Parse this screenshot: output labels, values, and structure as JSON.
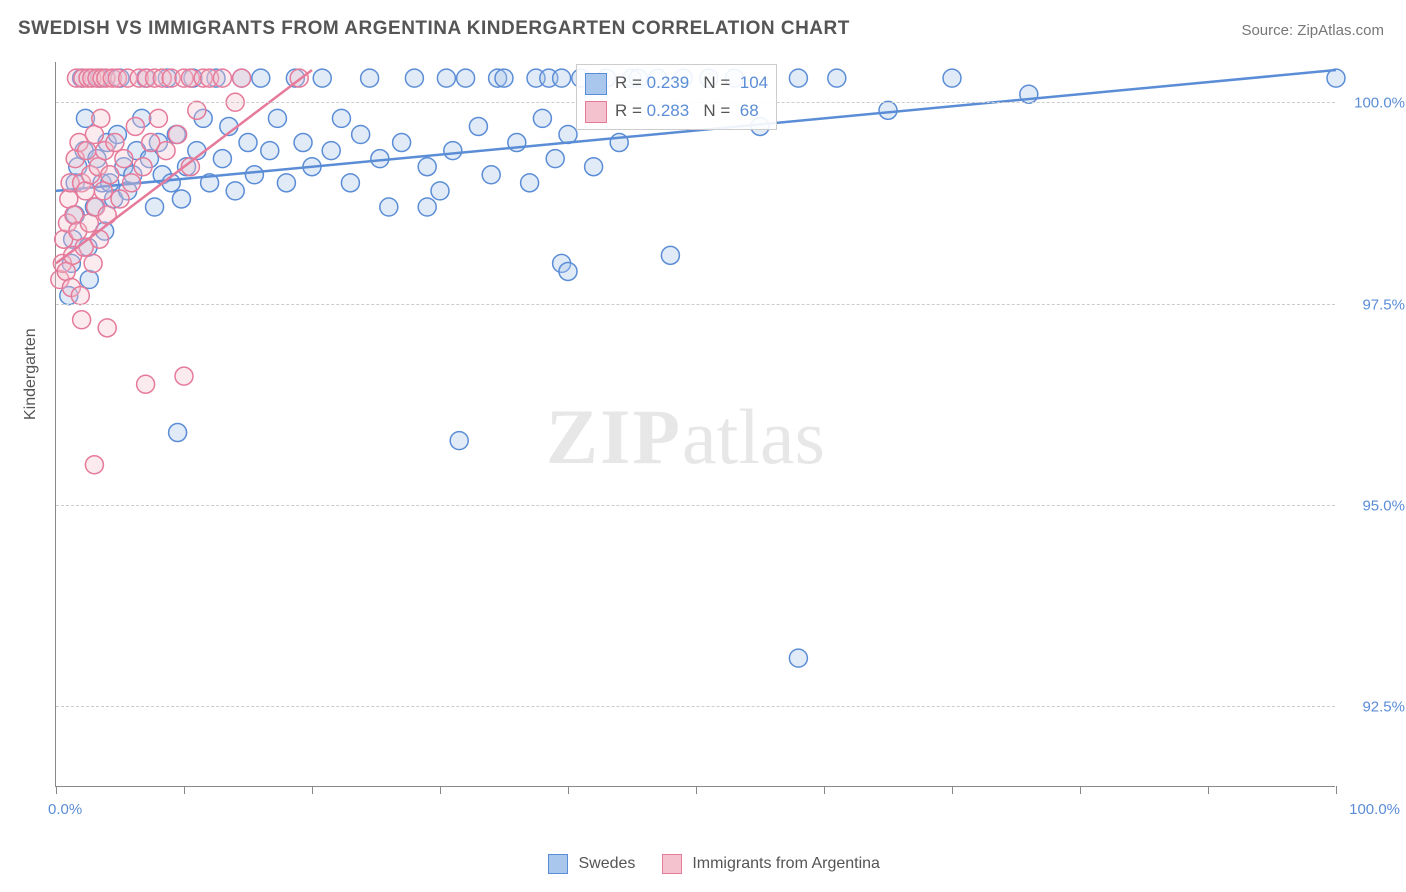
{
  "title": "SWEDISH VS IMMIGRANTS FROM ARGENTINA KINDERGARTEN CORRELATION CHART",
  "source": "Source: ZipAtlas.com",
  "y_axis_title": "Kindergarten",
  "watermark_bold": "ZIP",
  "watermark_light": "atlas",
  "chart": {
    "type": "scatter",
    "background_color": "#ffffff",
    "grid_color": "#cccccc",
    "axis_color": "#888888",
    "xlim": [
      0,
      100
    ],
    "ylim": [
      91.5,
      100.5
    ],
    "x_tick_positions": [
      0,
      10,
      20,
      30,
      40,
      50,
      60,
      70,
      80,
      90,
      100
    ],
    "x_origin_label": "0.0%",
    "x_end_label": "100.0%",
    "y_ticks": [
      {
        "value": 92.5,
        "label": "92.5%"
      },
      {
        "value": 95.0,
        "label": "95.0%"
      },
      {
        "value": 97.5,
        "label": "97.5%"
      },
      {
        "value": 100.0,
        "label": "100.0%"
      }
    ],
    "marker_radius": 9,
    "marker_fill_opacity": 0.35,
    "marker_stroke_width": 1.5,
    "trend_line_width": 2.5,
    "series": [
      {
        "name": "Swedes",
        "color_fill": "#a9c6ec",
        "color_stroke": "#5b8dd6",
        "r_value": "0.239",
        "n_value": "104",
        "trend": {
          "x1": 0,
          "y1": 98.9,
          "x2": 100,
          "y2": 100.4
        },
        "points": [
          [
            1.0,
            97.6
          ],
          [
            1.2,
            98.0
          ],
          [
            1.3,
            98.3
          ],
          [
            1.5,
            98.6
          ],
          [
            1.5,
            99.0
          ],
          [
            1.7,
            99.2
          ],
          [
            2.0,
            100.3
          ],
          [
            2.2,
            99.4
          ],
          [
            2.3,
            99.8
          ],
          [
            2.5,
            98.2
          ],
          [
            2.6,
            97.8
          ],
          [
            3.0,
            98.7
          ],
          [
            3.2,
            99.3
          ],
          [
            3.4,
            100.3
          ],
          [
            3.6,
            99.0
          ],
          [
            3.8,
            98.4
          ],
          [
            4.0,
            99.5
          ],
          [
            4.2,
            99.0
          ],
          [
            4.5,
            98.8
          ],
          [
            4.8,
            99.6
          ],
          [
            5.0,
            100.3
          ],
          [
            5.3,
            99.2
          ],
          [
            5.6,
            98.9
          ],
          [
            6.0,
            99.1
          ],
          [
            6.3,
            99.4
          ],
          [
            6.7,
            99.8
          ],
          [
            7.0,
            100.3
          ],
          [
            7.3,
            99.3
          ],
          [
            7.7,
            98.7
          ],
          [
            8.0,
            99.5
          ],
          [
            8.3,
            99.1
          ],
          [
            8.7,
            100.3
          ],
          [
            9.0,
            99.0
          ],
          [
            9.4,
            99.6
          ],
          [
            9.8,
            98.8
          ],
          [
            10.2,
            99.2
          ],
          [
            10.7,
            100.3
          ],
          [
            11.0,
            99.4
          ],
          [
            11.5,
            99.8
          ],
          [
            12.0,
            99.0
          ],
          [
            12.5,
            100.3
          ],
          [
            13.0,
            99.3
          ],
          [
            13.5,
            99.7
          ],
          [
            14.0,
            98.9
          ],
          [
            14.5,
            100.3
          ],
          [
            15.0,
            99.5
          ],
          [
            15.5,
            99.1
          ],
          [
            16.0,
            100.3
          ],
          [
            16.7,
            99.4
          ],
          [
            17.3,
            99.8
          ],
          [
            18.0,
            99.0
          ],
          [
            18.7,
            100.3
          ],
          [
            19.3,
            99.5
          ],
          [
            20.0,
            99.2
          ],
          [
            20.8,
            100.3
          ],
          [
            21.5,
            99.4
          ],
          [
            22.3,
            99.8
          ],
          [
            23.0,
            99.0
          ],
          [
            23.8,
            99.6
          ],
          [
            24.5,
            100.3
          ],
          [
            25.3,
            99.3
          ],
          [
            26.0,
            98.7
          ],
          [
            27.0,
            99.5
          ],
          [
            28.0,
            100.3
          ],
          [
            29.0,
            99.2
          ],
          [
            30.0,
            98.9
          ],
          [
            30.5,
            100.3
          ],
          [
            31.0,
            99.4
          ],
          [
            32.0,
            100.3
          ],
          [
            33.0,
            99.7
          ],
          [
            34.0,
            99.1
          ],
          [
            34.5,
            100.3
          ],
          [
            35.0,
            100.3
          ],
          [
            36.0,
            99.5
          ],
          [
            37.0,
            99.0
          ],
          [
            37.5,
            100.3
          ],
          [
            38.0,
            99.8
          ],
          [
            38.5,
            100.3
          ],
          [
            39.0,
            99.3
          ],
          [
            39.5,
            100.3
          ],
          [
            40.0,
            99.6
          ],
          [
            41.0,
            100.3
          ],
          [
            42.0,
            99.2
          ],
          [
            43.0,
            100.3
          ],
          [
            44.0,
            99.5
          ],
          [
            45.0,
            100.3
          ],
          [
            45.5,
            100.3
          ],
          [
            47.0,
            100.3
          ],
          [
            49.0,
            100.3
          ],
          [
            51.0,
            100.3
          ],
          [
            53.0,
            100.3
          ],
          [
            55.0,
            99.7
          ],
          [
            58.0,
            100.3
          ],
          [
            61.0,
            100.3
          ],
          [
            65.0,
            99.9
          ],
          [
            70.0,
            100.3
          ],
          [
            76.0,
            100.1
          ],
          [
            100.0,
            100.3
          ],
          [
            9.5,
            95.9
          ],
          [
            29.0,
            98.7
          ],
          [
            31.5,
            95.8
          ],
          [
            39.5,
            98.0
          ],
          [
            40.0,
            97.9
          ],
          [
            48.0,
            98.1
          ],
          [
            58.0,
            93.1
          ]
        ]
      },
      {
        "name": "Immigrants from Argentina",
        "color_fill": "#f4c2cf",
        "color_stroke": "#e67a9a",
        "r_value": "0.283",
        "n_value": "68",
        "trend": {
          "x1": 0,
          "y1": 98.0,
          "x2": 20,
          "y2": 100.4
        },
        "points": [
          [
            0.3,
            97.8
          ],
          [
            0.5,
            98.0
          ],
          [
            0.6,
            98.3
          ],
          [
            0.8,
            97.9
          ],
          [
            0.9,
            98.5
          ],
          [
            1.0,
            98.8
          ],
          [
            1.1,
            99.0
          ],
          [
            1.2,
            97.7
          ],
          [
            1.3,
            98.1
          ],
          [
            1.4,
            98.6
          ],
          [
            1.5,
            99.3
          ],
          [
            1.6,
            100.3
          ],
          [
            1.7,
            98.4
          ],
          [
            1.8,
            99.5
          ],
          [
            1.9,
            97.6
          ],
          [
            2.0,
            99.0
          ],
          [
            2.1,
            100.3
          ],
          [
            2.2,
            98.2
          ],
          [
            2.3,
            98.9
          ],
          [
            2.4,
            99.4
          ],
          [
            2.5,
            100.3
          ],
          [
            2.6,
            98.5
          ],
          [
            2.7,
            99.1
          ],
          [
            2.8,
            100.3
          ],
          [
            2.9,
            98.0
          ],
          [
            3.0,
            99.6
          ],
          [
            3.1,
            98.7
          ],
          [
            3.2,
            100.3
          ],
          [
            3.3,
            99.2
          ],
          [
            3.4,
            98.3
          ],
          [
            3.5,
            99.8
          ],
          [
            3.6,
            100.3
          ],
          [
            3.7,
            98.9
          ],
          [
            3.8,
            99.4
          ],
          [
            3.9,
            100.3
          ],
          [
            4.0,
            98.6
          ],
          [
            4.2,
            99.1
          ],
          [
            4.4,
            100.3
          ],
          [
            4.6,
            99.5
          ],
          [
            4.8,
            100.3
          ],
          [
            5.0,
            98.8
          ],
          [
            5.3,
            99.3
          ],
          [
            5.6,
            100.3
          ],
          [
            5.9,
            99.0
          ],
          [
            6.2,
            99.7
          ],
          [
            6.5,
            100.3
          ],
          [
            6.8,
            99.2
          ],
          [
            7.1,
            100.3
          ],
          [
            7.4,
            99.5
          ],
          [
            7.7,
            100.3
          ],
          [
            8.0,
            99.8
          ],
          [
            8.3,
            100.3
          ],
          [
            8.6,
            99.4
          ],
          [
            9.0,
            100.3
          ],
          [
            9.5,
            99.6
          ],
          [
            10.0,
            100.3
          ],
          [
            10.5,
            100.3
          ],
          [
            11.0,
            99.9
          ],
          [
            11.5,
            100.3
          ],
          [
            12.0,
            100.3
          ],
          [
            13.0,
            100.3
          ],
          [
            14.0,
            100.0
          ],
          [
            14.5,
            100.3
          ],
          [
            2.0,
            97.3
          ],
          [
            4.0,
            97.2
          ],
          [
            3.0,
            95.5
          ],
          [
            7.0,
            96.5
          ],
          [
            10.0,
            96.6
          ],
          [
            10.5,
            99.2
          ],
          [
            19.0,
            100.3
          ]
        ]
      }
    ]
  },
  "legend_box": {
    "r_label": "R =",
    "n_label": "N ="
  },
  "bottom_legend_labels": [
    "Swedes",
    "Immigrants from Argentina"
  ]
}
